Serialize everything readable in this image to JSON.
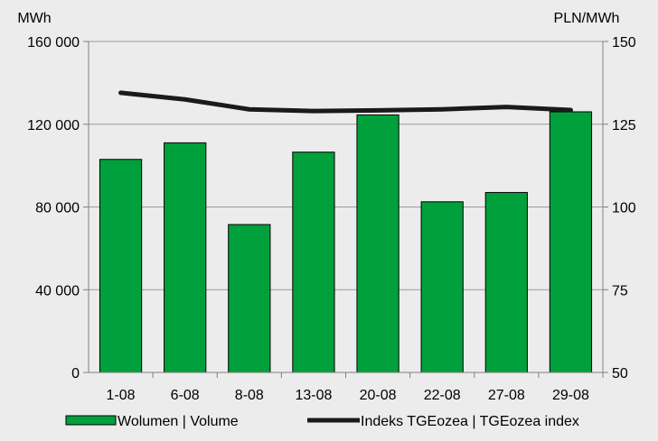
{
  "chart_data": {
    "type": "bar",
    "categories": [
      "1-08",
      "6-08",
      "8-08",
      "13-08",
      "20-08",
      "22-08",
      "27-08",
      "29-08"
    ],
    "y_left": {
      "label": "MWh",
      "ylim": [
        0,
        160000
      ],
      "ticks": [
        0,
        40000,
        80000,
        120000,
        160000
      ],
      "tick_labels": [
        "0",
        "40 000",
        "80 000",
        "120 000",
        "160 000"
      ]
    },
    "y_right": {
      "label": "PLN/MWh",
      "ylim": [
        50,
        150
      ],
      "ticks": [
        50,
        75,
        100,
        125,
        150
      ],
      "tick_labels": [
        "50",
        "75",
        "100",
        "125",
        "150"
      ]
    },
    "series": [
      {
        "name": "Wolumen  |  Volume",
        "type": "bar",
        "axis": "left",
        "color": "#00a03c",
        "values": [
          103000,
          111000,
          71500,
          106500,
          124500,
          82500,
          87000,
          126000
        ]
      },
      {
        "name": "Indeks TGEozea  |  TGEozea index",
        "type": "line",
        "axis": "right",
        "color": "#1a1a1a",
        "values": [
          134.5,
          132.5,
          129.5,
          129,
          129.2,
          129.5,
          130.2,
          129.3
        ]
      }
    ],
    "grid": "horizontal",
    "legend_position": "bottom"
  }
}
